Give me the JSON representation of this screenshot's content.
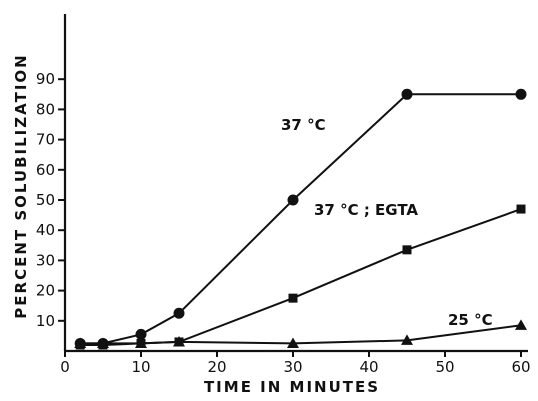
{
  "chart_data": {
    "type": "line",
    "title": "",
    "xlabel": "TIME IN MINUTES",
    "ylabel": "PERCENT SOLUBILIZATION",
    "xlim": [
      0,
      62
    ],
    "ylim": [
      0,
      100
    ],
    "xticks": [
      0,
      10,
      20,
      30,
      40,
      50,
      60
    ],
    "yticks": [
      10,
      20,
      30,
      40,
      50,
      60,
      70,
      80,
      90
    ],
    "grid": false,
    "series": [
      {
        "name": "37 °C",
        "marker": "circle",
        "points": [
          [
            2,
            2.5
          ],
          [
            5,
            2.5
          ],
          [
            10,
            5.5
          ],
          [
            15,
            12.5
          ],
          [
            30,
            50
          ],
          [
            45,
            85
          ],
          [
            60,
            85
          ]
        ]
      },
      {
        "name": "37 °C ; EGTA",
        "marker": "square",
        "points": [
          [
            2,
            2
          ],
          [
            5,
            2
          ],
          [
            10,
            2.5
          ],
          [
            15,
            3
          ],
          [
            30,
            17.5
          ],
          [
            45,
            33.5
          ],
          [
            60,
            47
          ]
        ]
      },
      {
        "name": "25 °C",
        "marker": "triangle",
        "points": [
          [
            2,
            2.5
          ],
          [
            5,
            2.5
          ],
          [
            10,
            2.5
          ],
          [
            15,
            3
          ],
          [
            30,
            2.5
          ],
          [
            45,
            3.5
          ],
          [
            60,
            8.5
          ]
        ]
      }
    ]
  }
}
